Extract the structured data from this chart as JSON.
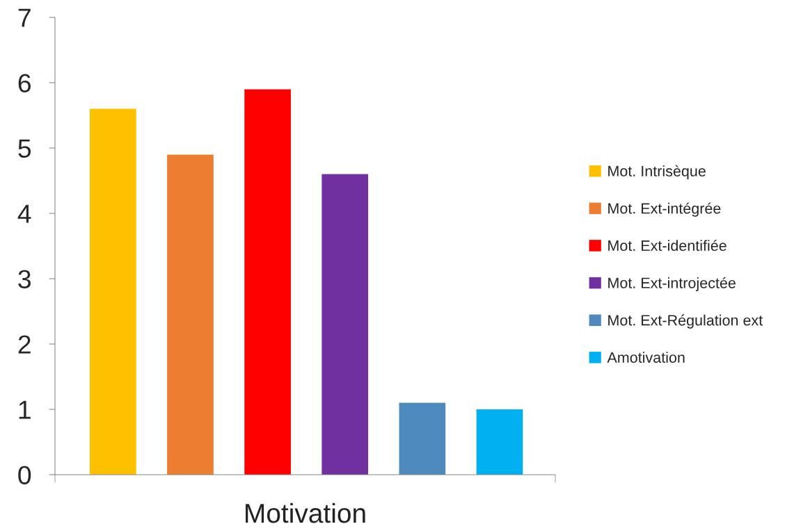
{
  "chart_data": {
    "type": "bar",
    "categories": [
      null,
      null,
      null,
      null,
      null,
      null
    ],
    "xlabel": "Motivation",
    "series": [
      {
        "name": "Mot. Intrisèque",
        "color": "#ffc000",
        "values": [
          5.6,
          null,
          null,
          null,
          null,
          null
        ]
      },
      {
        "name": "Mot. Ext-intégrée",
        "color": "#ed7d31",
        "values": [
          null,
          4.9,
          null,
          null,
          null,
          null
        ]
      },
      {
        "name": "Mot. Ext-identifiée",
        "color": "#ff0000",
        "values": [
          null,
          null,
          5.9,
          null,
          null,
          null
        ]
      },
      {
        "name": "Mot. Ext-introjectée",
        "color": "#7030a0",
        "values": [
          null,
          null,
          null,
          4.6,
          null,
          null
        ]
      },
      {
        "name": "Mot. Ext-Régulation ext",
        "color": "#4f8abf",
        "values": [
          null,
          null,
          null,
          null,
          1.1,
          null
        ]
      },
      {
        "name": "Amotivation",
        "color": "#00b0f0",
        "values": [
          null,
          null,
          null,
          null,
          null,
          1.0
        ]
      }
    ],
    "ylim": [
      0,
      7
    ],
    "yticks": [
      0,
      1,
      2,
      3,
      4,
      5,
      6,
      7
    ],
    "grid": false,
    "legend": "right"
  }
}
